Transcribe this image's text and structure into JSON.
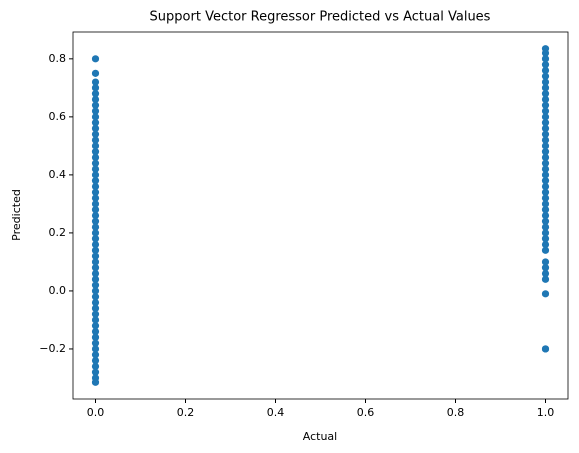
{
  "chart_data": {
    "type": "scatter",
    "title": "Support Vector Regressor Predicted vs Actual Values",
    "x_label": "Actual",
    "y_label": "Predicted",
    "color": "#1f77b4",
    "x": [
      0,
      0,
      0,
      0,
      0,
      0,
      0,
      0,
      0,
      0,
      0,
      0,
      0,
      0,
      0,
      0,
      0,
      0,
      0,
      0,
      0,
      0,
      0,
      0,
      0,
      0,
      0,
      0,
      0,
      0,
      0,
      0,
      0,
      0,
      0,
      0,
      0,
      0,
      0,
      0,
      0,
      0,
      0,
      0,
      0,
      0,
      0,
      0,
      0,
      0,
      0,
      0,
      0,
      0,
      0,
      1,
      1,
      1,
      1,
      1,
      1,
      1,
      1,
      1,
      1,
      1,
      1,
      1,
      1,
      1,
      1,
      1,
      1,
      1,
      1,
      1,
      1,
      1,
      1,
      1,
      1,
      1,
      1,
      1,
      1,
      1,
      1,
      1,
      1,
      1,
      1,
      1,
      1,
      1,
      1,
      1,
      1,
      1
    ],
    "values": [
      -0.315,
      -0.3,
      -0.28,
      -0.26,
      -0.24,
      -0.22,
      -0.2,
      -0.18,
      -0.16,
      -0.14,
      -0.12,
      -0.1,
      -0.08,
      -0.06,
      -0.04,
      -0.02,
      0,
      0.02,
      0.04,
      0.06,
      0.08,
      0.1,
      0.12,
      0.14,
      0.16,
      0.18,
      0.2,
      0.22,
      0.24,
      0.26,
      0.28,
      0.3,
      0.32,
      0.34,
      0.36,
      0.38,
      0.4,
      0.42,
      0.44,
      0.46,
      0.48,
      0.5,
      0.52,
      0.54,
      0.56,
      0.58,
      0.6,
      0.62,
      0.64,
      0.66,
      0.68,
      0.7,
      0.72,
      0.75,
      0.8,
      -0.2,
      -0.2,
      -0.01,
      0.04,
      0.06,
      0.08,
      0.1,
      0.14,
      0.16,
      0.18,
      0.2,
      0.22,
      0.24,
      0.26,
      0.28,
      0.3,
      0.32,
      0.34,
      0.36,
      0.38,
      0.4,
      0.42,
      0.44,
      0.46,
      0.48,
      0.5,
      0.52,
      0.54,
      0.56,
      0.58,
      0.6,
      0.62,
      0.64,
      0.66,
      0.68,
      0.7,
      0.72,
      0.74,
      0.76,
      0.78,
      0.8,
      0.82,
      0.835
    ],
    "xlim": [
      -0.05,
      1.05
    ],
    "ylim": [
      -0.3725,
      0.8925
    ],
    "xticks": [
      {
        "value": 0,
        "label": "0.0"
      },
      {
        "value": 0.2,
        "label": "0.2"
      },
      {
        "value": 0.4,
        "label": "0.4"
      },
      {
        "value": 0.6,
        "label": "0.6"
      },
      {
        "value": 0.8,
        "label": "0.8"
      },
      {
        "value": 1,
        "label": "1.0"
      }
    ],
    "yticks": [
      {
        "value": -0.2,
        "label": "−0.2"
      },
      {
        "value": 0,
        "label": "0.0"
      },
      {
        "value": 0.2,
        "label": "0.2"
      },
      {
        "value": 0.4,
        "label": "0.4"
      },
      {
        "value": 0.6,
        "label": "0.6"
      },
      {
        "value": 0.8,
        "label": "0.8"
      }
    ],
    "grid": false
  }
}
